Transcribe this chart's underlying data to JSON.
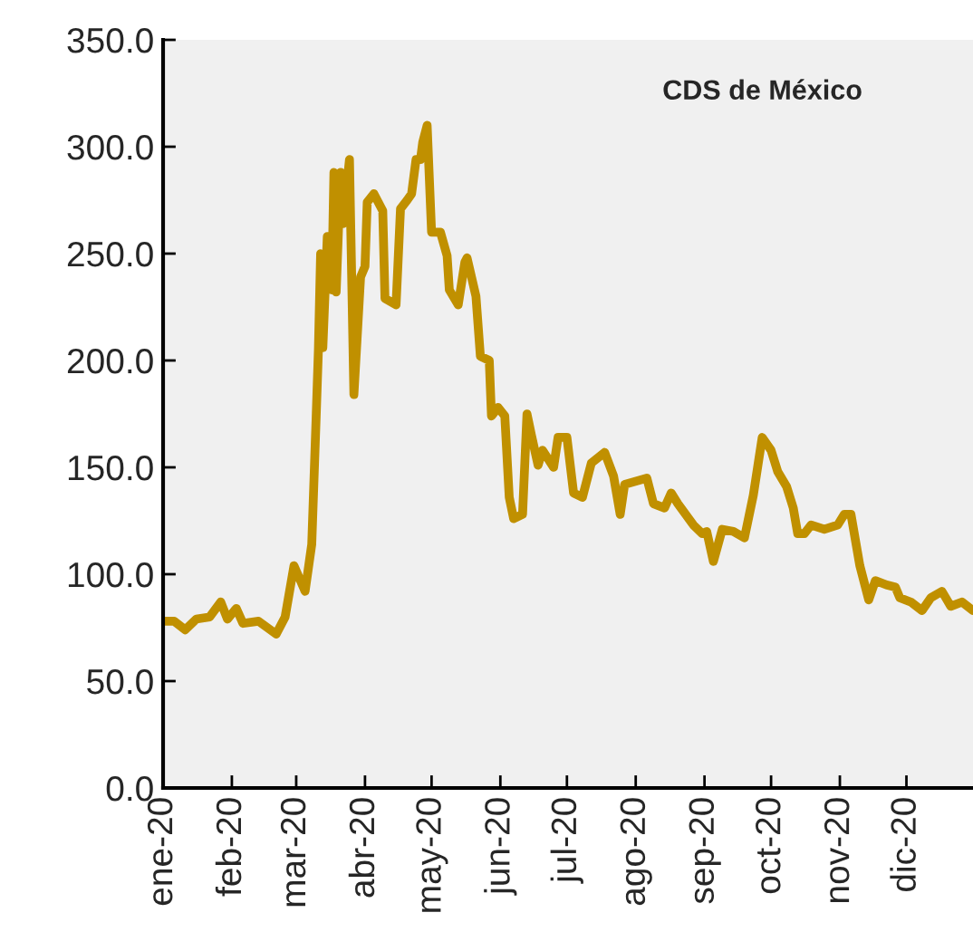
{
  "chart_data": {
    "type": "line",
    "title": "CDS de México",
    "x": [
      "2020-01-01",
      "2020-01-06",
      "2020-01-11",
      "2020-01-16",
      "2020-01-22",
      "2020-01-27",
      "2020-01-30",
      "2020-02-03",
      "2020-02-06",
      "2020-02-13",
      "2020-02-21",
      "2020-02-25",
      "2020-02-29",
      "2020-03-05",
      "2020-03-08",
      "2020-03-10",
      "2020-03-11",
      "2020-03-12",
      "2020-03-13",
      "2020-03-15",
      "2020-03-17",
      "2020-03-18",
      "2020-03-19",
      "2020-03-21",
      "2020-03-22",
      "2020-03-25",
      "2020-03-27",
      "2020-03-30",
      "2020-04-01",
      "2020-04-02",
      "2020-04-05",
      "2020-04-09",
      "2020-04-10",
      "2020-04-15",
      "2020-04-17",
      "2020-04-20",
      "2020-04-22",
      "2020-04-24",
      "2020-04-26",
      "2020-04-27",
      "2020-04-29",
      "2020-05-01",
      "2020-05-05",
      "2020-05-08",
      "2020-05-09",
      "2020-05-13",
      "2020-05-16",
      "2020-05-17",
      "2020-05-21",
      "2020-05-23",
      "2020-05-27",
      "2020-05-28",
      "2020-05-31",
      "2020-06-03",
      "2020-06-05",
      "2020-06-07",
      "2020-06-11",
      "2020-06-13",
      "2020-06-15",
      "2020-06-18",
      "2020-06-20",
      "2020-06-25",
      "2020-06-27",
      "2020-07-01",
      "2020-07-04",
      "2020-07-08",
      "2020-07-12",
      "2020-07-18",
      "2020-07-22",
      "2020-07-25",
      "2020-07-27",
      "2020-08-06",
      "2020-08-09",
      "2020-08-14",
      "2020-08-17",
      "2020-08-20",
      "2020-08-27",
      "2020-08-31",
      "2020-09-02",
      "2020-09-05",
      "2020-09-09",
      "2020-09-14",
      "2020-09-19",
      "2020-09-23",
      "2020-09-27",
      "2020-10-01",
      "2020-10-04",
      "2020-10-08",
      "2020-10-11",
      "2020-10-13",
      "2020-10-16",
      "2020-10-19",
      "2020-10-25",
      "2020-10-31",
      "2020-11-03",
      "2020-11-06",
      "2020-11-10",
      "2020-11-14",
      "2020-11-17",
      "2020-11-22",
      "2020-11-26",
      "2020-11-28",
      "2020-12-03",
      "2020-12-08",
      "2020-12-12",
      "2020-12-17",
      "2020-12-21",
      "2020-12-26",
      "2020-12-31"
    ],
    "series": [
      {
        "color": "#c09000",
        "values": [
          78,
          78,
          74,
          79,
          80,
          87,
          79,
          84,
          77,
          78,
          72,
          80,
          104,
          92,
          114,
          174,
          205,
          250,
          206,
          258,
          233,
          288,
          232,
          288,
          264,
          294,
          184,
          239,
          244,
          274,
          278,
          270,
          229,
          226,
          271,
          275,
          278,
          294,
          294,
          302,
          310,
          260,
          260,
          249,
          233,
          226,
          246,
          248,
          230,
          202,
          200,
          174,
          178,
          174,
          136,
          126,
          128,
          175,
          165,
          151,
          158,
          150,
          164,
          164,
          138,
          136,
          152,
          157,
          146,
          128,
          142,
          145,
          133,
          131,
          138,
          133,
          123,
          119,
          120,
          106,
          121,
          120,
          117,
          137,
          164,
          158,
          148,
          141,
          131,
          119,
          119,
          123,
          121,
          123,
          128,
          128,
          104,
          88,
          97,
          95,
          94,
          89,
          87,
          83,
          89,
          92,
          85,
          87,
          83
        ]
      }
    ],
    "xlim": [
      "2020-01-01",
      "2020-12-31"
    ],
    "xticks": [
      {
        "value": "2020-01-01",
        "label": "ene-20"
      },
      {
        "value": "2020-02-01",
        "label": "feb-20"
      },
      {
        "value": "2020-03-01",
        "label": "mar-20"
      },
      {
        "value": "2020-04-01",
        "label": "abr-20"
      },
      {
        "value": "2020-05-01",
        "label": "may-20"
      },
      {
        "value": "2020-06-01",
        "label": "jun-20"
      },
      {
        "value": "2020-07-01",
        "label": "jul-20"
      },
      {
        "value": "2020-08-01",
        "label": "ago-20"
      },
      {
        "value": "2020-09-01",
        "label": "sep-20"
      },
      {
        "value": "2020-10-01",
        "label": "oct-20"
      },
      {
        "value": "2020-11-01",
        "label": "nov-20"
      },
      {
        "value": "2020-12-01",
        "label": "dic-20"
      }
    ],
    "ylim": [
      0,
      350
    ],
    "yticks": [
      {
        "value": 0,
        "label": "0.0"
      },
      {
        "value": 50,
        "label": "50.0"
      },
      {
        "value": 100,
        "label": "100.0"
      },
      {
        "value": 150,
        "label": "150.0"
      },
      {
        "value": 200,
        "label": "200.0"
      },
      {
        "value": 250,
        "label": "250.0"
      },
      {
        "value": 300,
        "label": "300.0"
      },
      {
        "value": 350,
        "label": "350.0"
      }
    ],
    "grid": false,
    "marker": "none",
    "line_style": "solid"
  }
}
